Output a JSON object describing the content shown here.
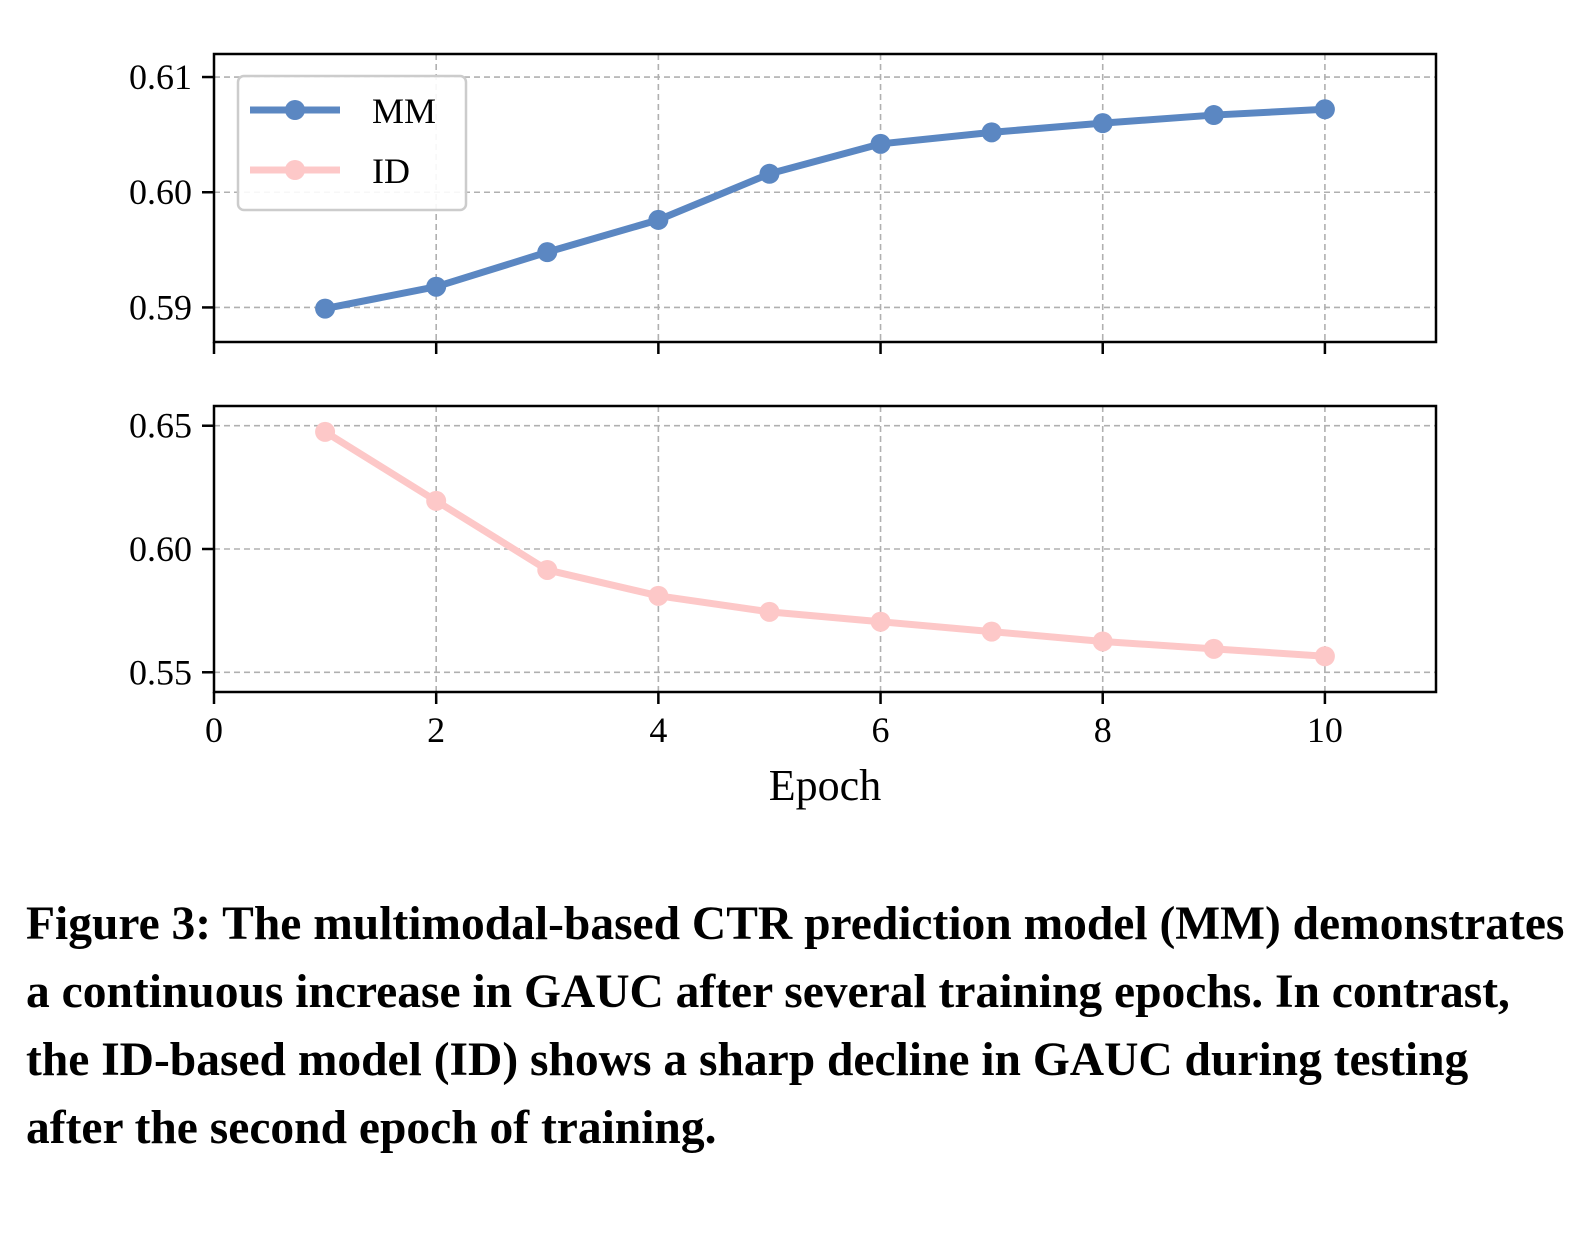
{
  "chart_data": [
    {
      "type": "line",
      "panel": "top",
      "x": [
        1,
        2,
        3,
        4,
        5,
        6,
        7,
        8,
        9,
        10
      ],
      "series": [
        {
          "name": "MM",
          "color": "#5b87c2",
          "values": [
            0.5899,
            0.5918,
            0.5948,
            0.5976,
            0.6016,
            0.6042,
            0.6052,
            0.606,
            0.6067,
            0.6072
          ]
        }
      ],
      "xlim": [
        0,
        11
      ],
      "ylim": [
        0.587,
        0.612
      ],
      "yticks": [
        0.59,
        0.6,
        0.61
      ],
      "ytick_labels": [
        "0.59",
        "0.60",
        "0.61"
      ],
      "grid": true,
      "legend": {
        "position": "top-left",
        "entries": [
          "MM",
          "ID"
        ]
      }
    },
    {
      "type": "line",
      "panel": "bottom",
      "x": [
        1,
        2,
        3,
        4,
        5,
        6,
        7,
        8,
        9,
        10
      ],
      "series": [
        {
          "name": "ID",
          "color": "#fdc8c8",
          "values": [
            0.6475,
            0.6195,
            0.5915,
            0.581,
            0.5745,
            0.5705,
            0.5665,
            0.5625,
            0.5595,
            0.5565
          ]
        }
      ],
      "xlim": [
        0,
        11
      ],
      "ylim": [
        0.542,
        0.658
      ],
      "yticks": [
        0.55,
        0.6,
        0.65
      ],
      "ytick_labels": [
        "0.55",
        "0.60",
        "0.65"
      ],
      "xticks": [
        0,
        2,
        4,
        6,
        8,
        10
      ],
      "xtick_labels": [
        "0",
        "2",
        "4",
        "6",
        "8",
        "10"
      ],
      "xlabel": "Epoch",
      "grid": true
    }
  ],
  "caption": "Figure 3: The multimodal-based CTR prediction model (MM) demonstrates a continuous increase in GAUC after several training epochs. In contrast, the ID-based model (ID) shows a sharp decline in GAUC during testing after the second epoch of training."
}
